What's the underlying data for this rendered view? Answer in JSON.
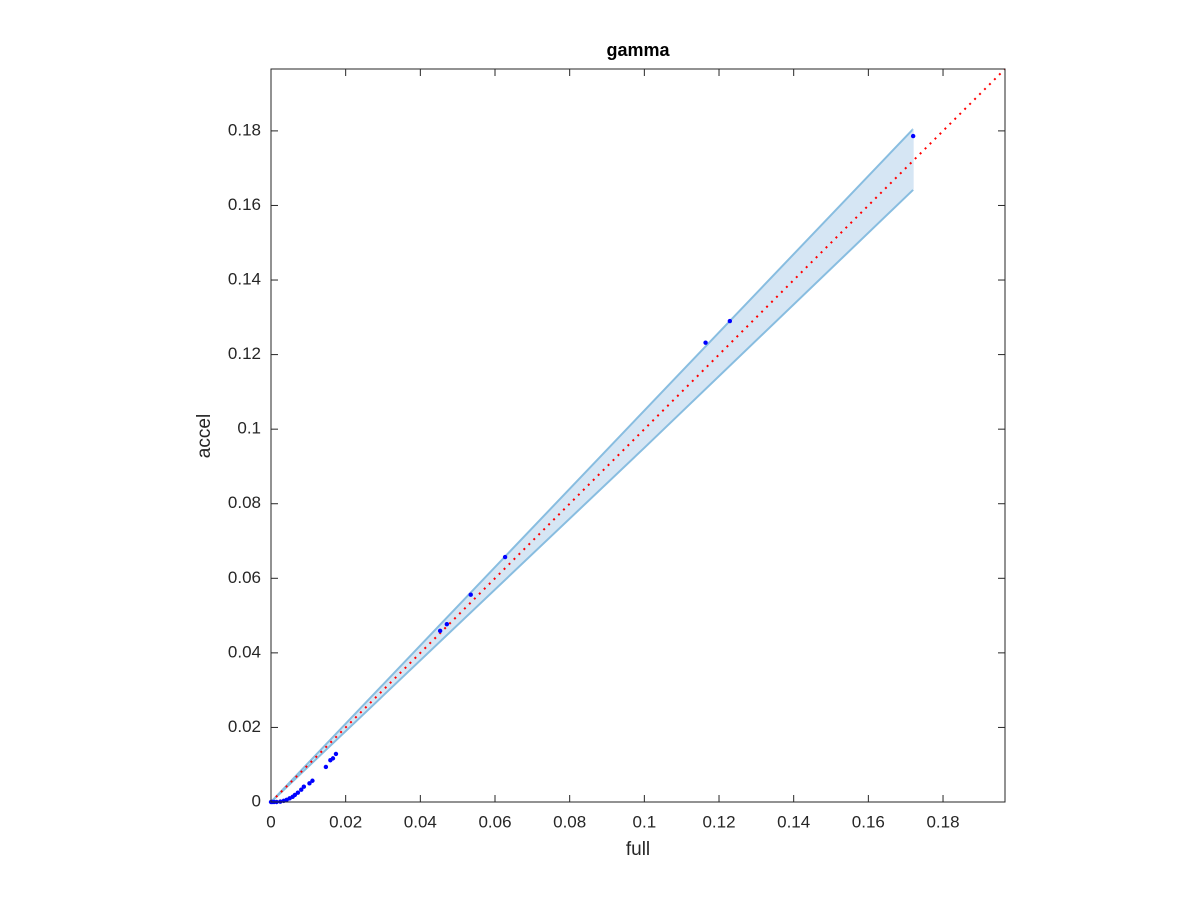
{
  "chart_data": {
    "type": "scatter",
    "title": "gamma",
    "x_label": "full",
    "y_label": "accel",
    "xlim": [
      0,
      0.1966
    ],
    "ylim": [
      0,
      0.1966
    ],
    "xticks": [
      0,
      0.02,
      0.04,
      0.06,
      0.08,
      0.1,
      0.12,
      0.14,
      0.16,
      0.18
    ],
    "yticks": [
      0,
      0.02,
      0.04,
      0.06,
      0.08,
      0.1,
      0.12,
      0.14,
      0.16,
      0.18
    ],
    "band": {
      "x": [
        0,
        0.1,
        0.172
      ],
      "upper": [
        0,
        0.105,
        0.1805
      ],
      "lower": [
        0,
        0.095,
        0.1642
      ],
      "fill": "#d6e6f4",
      "edge": "#88bde0"
    },
    "reference_line": {
      "x": [
        0,
        0.1966
      ],
      "y": [
        0,
        0.1966
      ],
      "color": "#ff0000"
    },
    "series": [
      {
        "color": "#0000ff",
        "x": [
          0.172,
          0.1229,
          0.1164,
          0.0627,
          0.0535,
          0.0471,
          0.0453,
          0.0174,
          0.0166,
          0.0159,
          0.0147,
          0.0111,
          0.0103,
          0.0088,
          0.0081,
          0.0072,
          0.0064,
          0.0058,
          0.005,
          0.0042,
          0.0034,
          0.0025,
          0.0015,
          0.0008,
          0.0003,
          0
        ],
        "values": [
          0.1786,
          0.129,
          0.1232,
          0.0657,
          0.0556,
          0.0477,
          0.0459,
          0.0129,
          0.0117,
          0.0112,
          0.0094,
          0.0057,
          0.005,
          0.0041,
          0.0033,
          0.0025,
          0.0019,
          0.0014,
          0.001,
          0.0006,
          0.0003,
          0.0001,
          0,
          0,
          0,
          0
        ]
      }
    ]
  }
}
